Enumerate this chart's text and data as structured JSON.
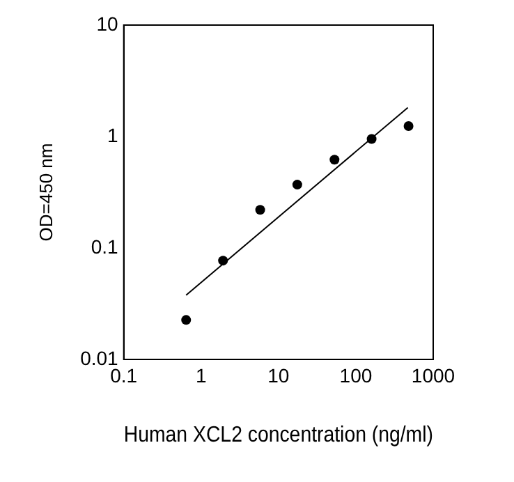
{
  "chart_data": {
    "type": "scatter",
    "xlabel": "Human XCL2 concentration (ng/ml)",
    "ylabel": "OD=450 nm",
    "log": "xy",
    "xlim": [
      0.1,
      1000
    ],
    "xticks": [
      0.1,
      1,
      10,
      100,
      1000
    ],
    "ylim": [
      0.01,
      10
    ],
    "yticks": [
      0.01,
      0.1,
      1,
      10
    ],
    "grid": false,
    "legend": false,
    "marker": "circle",
    "series": [
      {
        "type": "scatter",
        "color": "#000000",
        "x": [
          0.64,
          1.92,
          5.8,
          17.5,
          53,
          160,
          480
        ],
        "values": [
          0.0226,
          0.077,
          0.22,
          0.37,
          0.62,
          0.95,
          1.24
        ]
      },
      {
        "type": "line",
        "color": "#000000",
        "x": [
          0.64,
          470
        ],
        "values": [
          0.0377,
          1.82
        ],
        "marker": "none",
        "line_style": "solid"
      }
    ]
  }
}
